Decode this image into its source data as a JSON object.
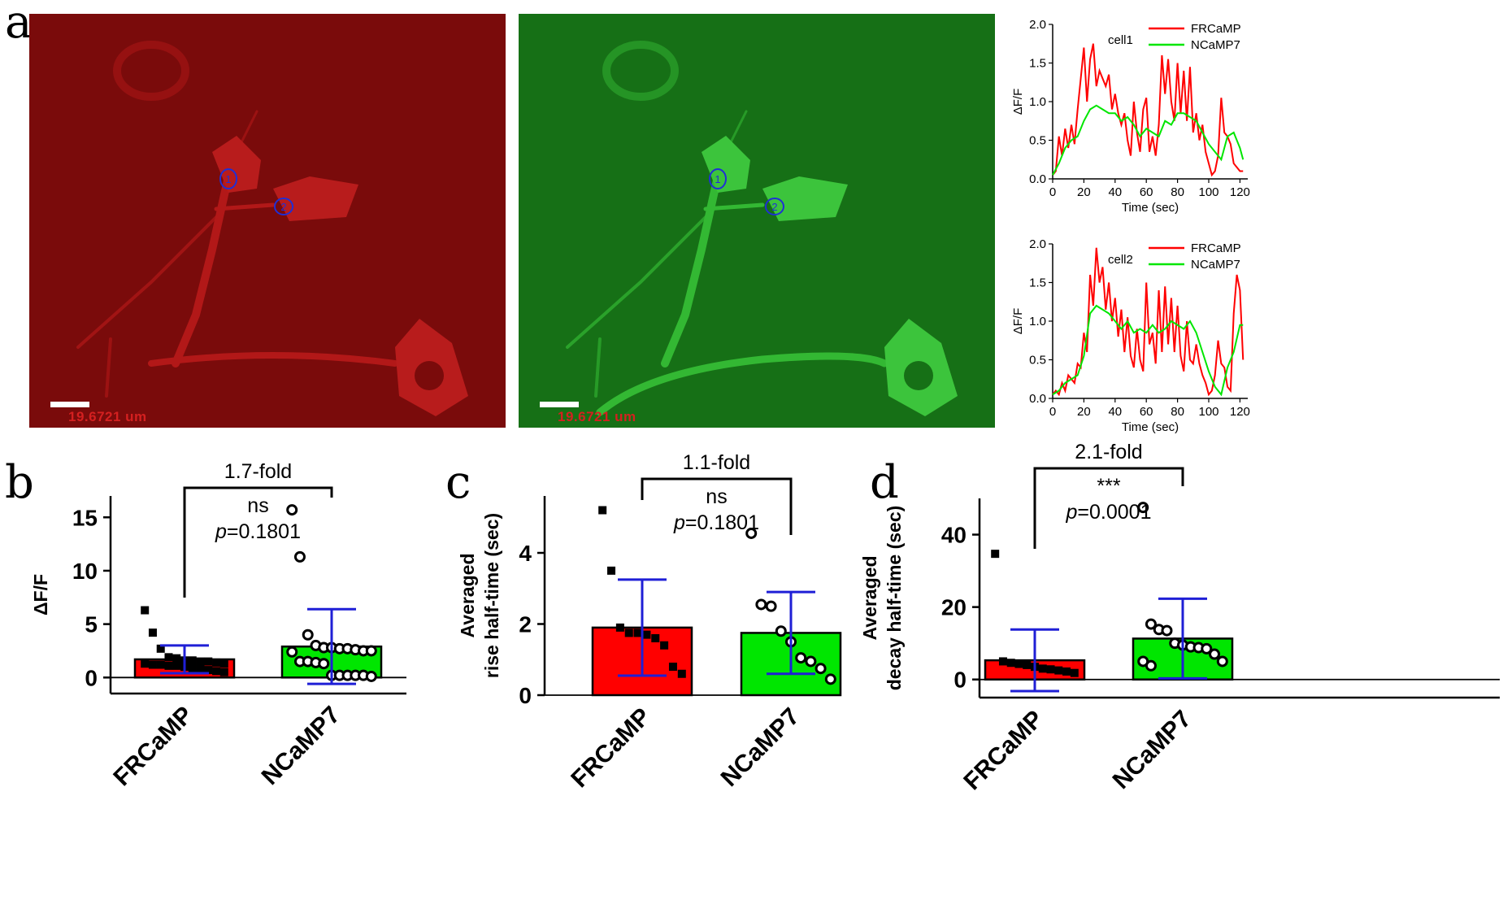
{
  "panel_letters": {
    "a": "a",
    "b": "b",
    "c": "c",
    "d": "d"
  },
  "images": {
    "red": {
      "color": "#8a0c0c",
      "scale_text": "19.6721 um",
      "roi_labels": [
        "1",
        "2"
      ]
    },
    "green": {
      "color": "#1a7a1a",
      "scale_text": "19.6721 um",
      "roi_labels": [
        "1",
        "2"
      ]
    }
  },
  "colors": {
    "FRCaMP": "#ff0000",
    "NCaMP7": "#00e600",
    "error_bar": "#1f1fd6",
    "roi": "#1f2fd6"
  },
  "chart_data": [
    {
      "id": "cell1",
      "type": "line",
      "annotation": "cell1",
      "xlabel": "Time (sec)",
      "ylabel": "ΔF/F",
      "xlim": [
        0,
        125
      ],
      "ylim": [
        0,
        2.0
      ],
      "xticks": [
        0,
        20,
        40,
        60,
        80,
        100,
        120
      ],
      "yticks": [
        0.0,
        0.5,
        1.0,
        1.5,
        2.0
      ],
      "ytick_labels": [
        "0.0",
        "0.5",
        "1.0",
        "1.5",
        "2.0"
      ],
      "legend_position": "top-right",
      "series": [
        {
          "name": "FRCaMP",
          "color": "#ff0000",
          "x": [
            0,
            2,
            4,
            6,
            8,
            10,
            12,
            14,
            16,
            18,
            20,
            22,
            24,
            26,
            28,
            30,
            32,
            34,
            36,
            38,
            40,
            42,
            44,
            46,
            48,
            50,
            52,
            54,
            56,
            58,
            60,
            62,
            64,
            66,
            68,
            70,
            72,
            74,
            76,
            78,
            80,
            82,
            84,
            86,
            88,
            90,
            92,
            94,
            96,
            98,
            100,
            102,
            104,
            106,
            108,
            110,
            112,
            114,
            116,
            118,
            120,
            122
          ],
          "y": [
            0.05,
            0.1,
            0.55,
            0.3,
            0.65,
            0.4,
            0.7,
            0.45,
            0.9,
            1.3,
            1.7,
            1.0,
            1.55,
            1.75,
            1.2,
            1.4,
            1.3,
            1.2,
            1.35,
            0.9,
            1.1,
            0.85,
            0.7,
            0.85,
            0.5,
            0.3,
            1.0,
            0.6,
            0.35,
            0.9,
            1.05,
            0.35,
            0.55,
            0.3,
            0.7,
            1.6,
            1.1,
            1.55,
            1.0,
            0.75,
            1.5,
            0.85,
            1.4,
            0.75,
            1.45,
            0.6,
            0.85,
            0.5,
            0.7,
            0.35,
            0.2,
            0.05,
            0.1,
            0.3,
            1.05,
            0.6,
            0.55,
            0.45,
            0.2,
            0.15,
            0.1,
            0.1
          ]
        },
        {
          "name": "NCaMP7",
          "color": "#00e600",
          "x": [
            0,
            4,
            8,
            12,
            16,
            20,
            24,
            28,
            32,
            36,
            40,
            44,
            48,
            52,
            56,
            60,
            64,
            68,
            72,
            76,
            80,
            84,
            88,
            92,
            96,
            100,
            104,
            108,
            112,
            116,
            120,
            122
          ],
          "y": [
            0.05,
            0.2,
            0.4,
            0.5,
            0.55,
            0.75,
            0.9,
            0.95,
            0.9,
            0.85,
            0.85,
            0.75,
            0.8,
            0.7,
            0.55,
            0.65,
            0.6,
            0.55,
            0.75,
            0.7,
            0.85,
            0.85,
            0.8,
            0.75,
            0.6,
            0.45,
            0.35,
            0.25,
            0.55,
            0.6,
            0.4,
            0.25
          ]
        }
      ]
    },
    {
      "id": "cell2",
      "type": "line",
      "annotation": "cell2",
      "xlabel": "Time (sec)",
      "ylabel": "ΔF/F",
      "xlim": [
        0,
        125
      ],
      "ylim": [
        0,
        2.0
      ],
      "xticks": [
        0,
        20,
        40,
        60,
        80,
        100,
        120
      ],
      "yticks": [
        0.0,
        0.5,
        1.0,
        1.5,
        2.0
      ],
      "ytick_labels": [
        "0.0",
        "0.5",
        "1.0",
        "1.5",
        "2.0"
      ],
      "legend_position": "top-right",
      "series": [
        {
          "name": "FRCaMP",
          "color": "#ff0000",
          "x": [
            0,
            2,
            4,
            6,
            8,
            10,
            12,
            14,
            16,
            18,
            20,
            22,
            24,
            26,
            28,
            30,
            32,
            34,
            36,
            38,
            40,
            42,
            44,
            46,
            48,
            50,
            52,
            54,
            56,
            58,
            60,
            62,
            64,
            66,
            68,
            70,
            72,
            74,
            76,
            78,
            80,
            82,
            84,
            86,
            88,
            90,
            92,
            94,
            96,
            98,
            100,
            102,
            104,
            106,
            108,
            110,
            112,
            114,
            116,
            118,
            120,
            122
          ],
          "y": [
            0.05,
            0.1,
            0.05,
            0.2,
            0.1,
            0.3,
            0.25,
            0.2,
            0.45,
            0.4,
            0.85,
            0.6,
            1.6,
            1.2,
            1.95,
            1.5,
            1.7,
            1.15,
            1.5,
            1.0,
            1.3,
            0.8,
            1.15,
            0.6,
            1.05,
            0.55,
            0.4,
            0.9,
            0.5,
            0.35,
            1.5,
            0.7,
            0.85,
            0.45,
            1.4,
            0.6,
            1.45,
            0.7,
            1.3,
            0.6,
            1.2,
            0.55,
            0.35,
            1.0,
            0.5,
            0.45,
            0.7,
            0.45,
            0.3,
            0.2,
            0.05,
            0.1,
            0.3,
            0.75,
            0.45,
            0.4,
            0.15,
            0.1,
            1.1,
            1.6,
            1.4,
            0.5
          ]
        },
        {
          "name": "NCaMP7",
          "color": "#00e600",
          "x": [
            0,
            4,
            8,
            12,
            16,
            20,
            24,
            28,
            32,
            36,
            40,
            44,
            48,
            52,
            56,
            60,
            64,
            68,
            72,
            76,
            80,
            84,
            88,
            92,
            96,
            100,
            104,
            108,
            112,
            116,
            120,
            122
          ],
          "y": [
            0.05,
            0.1,
            0.2,
            0.25,
            0.3,
            0.55,
            1.1,
            1.2,
            1.15,
            1.1,
            1.0,
            0.9,
            1.0,
            0.85,
            0.9,
            0.85,
            0.95,
            0.85,
            0.9,
            1.0,
            0.95,
            0.9,
            1.0,
            0.85,
            0.6,
            0.35,
            0.15,
            0.05,
            0.4,
            0.6,
            0.95,
            0.95
          ]
        }
      ]
    },
    {
      "id": "b",
      "type": "bar",
      "ylabel": "ΔF/F",
      "categories": [
        "FRCaMP",
        "NCaMP7"
      ],
      "ylim": [
        -1.5,
        17
      ],
      "yticks": [
        0,
        5,
        10,
        15
      ],
      "values": [
        1.7,
        2.9
      ],
      "sd": [
        1.3,
        3.5
      ],
      "bar_colors": [
        "#ff0000",
        "#00e600"
      ],
      "points": [
        [
          6.3,
          4.2,
          2.7,
          1.9,
          1.8,
          1.6,
          1.6,
          1.5,
          1.5,
          1.4,
          1.3,
          1.3,
          1.2,
          1.2,
          1.1,
          1.1,
          1.0,
          0.9,
          0.8,
          0.7,
          0.6,
          0.5
        ],
        [
          15.7,
          11.3,
          4.0,
          3.0,
          2.8,
          2.8,
          2.7,
          2.7,
          2.6,
          2.5,
          2.5,
          2.4,
          1.5,
          1.5,
          1.4,
          1.3,
          0.2,
          0.2,
          0.2,
          0.2,
          0.2,
          0.1
        ]
      ],
      "bracket": {
        "fold": "1.7-fold",
        "sig": "ns",
        "p_label": "p",
        "p_value": "=0.1801"
      }
    },
    {
      "id": "c",
      "type": "bar",
      "ylabel": [
        "Averaged",
        "rise half-time (sec)"
      ],
      "categories": [
        "FRCaMP",
        "NCaMP7"
      ],
      "ylim": [
        0,
        5.6
      ],
      "yticks": [
        0,
        2,
        4
      ],
      "values": [
        1.9,
        1.75
      ],
      "sd": [
        1.35,
        1.15
      ],
      "bar_colors": [
        "#ff0000",
        "#00e600"
      ],
      "points": [
        [
          5.2,
          3.5,
          1.9,
          1.75,
          1.75,
          1.7,
          1.6,
          1.4,
          0.8,
          0.6
        ],
        [
          4.55,
          2.55,
          2.5,
          1.8,
          1.5,
          1.05,
          0.95,
          0.75,
          0.45
        ]
      ],
      "bracket": {
        "fold": "1.1-fold",
        "sig": "ns",
        "p_label": "p",
        "p_value": "=0.1801"
      }
    },
    {
      "id": "d",
      "type": "bar",
      "ylabel": [
        "Averaged",
        "decay half-time (sec)"
      ],
      "categories": [
        "FRCaMP",
        "NCaMP7"
      ],
      "ylim": [
        -5,
        50
      ],
      "yticks": [
        0,
        20,
        40
      ],
      "values": [
        5.3,
        11.3
      ],
      "sd": [
        8.5,
        11.0
      ],
      "bar_colors": [
        "#ff0000",
        "#00e600"
      ],
      "points": [
        [
          34.7,
          5.0,
          4.6,
          4.3,
          4.0,
          3.5,
          3.0,
          2.8,
          2.5,
          2.2,
          1.8
        ],
        [
          47.5,
          15.3,
          13.8,
          13.5,
          10.0,
          9.5,
          9.0,
          8.8,
          8.5,
          7.0,
          5.0,
          5.0,
          3.8
        ]
      ],
      "bracket": {
        "fold": "2.1-fold",
        "sig": "***",
        "p_label": "p",
        "p_value": "=0.0001"
      }
    }
  ]
}
